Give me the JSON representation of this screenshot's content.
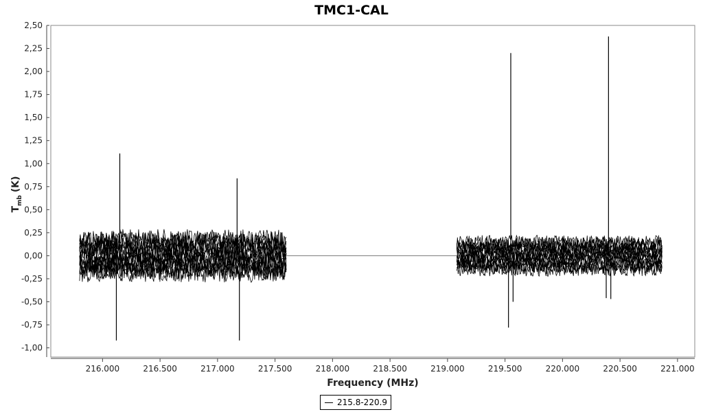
{
  "chart_data": {
    "type": "line",
    "title": "TMC1-CAL",
    "xlabel": "Frequency (MHz)",
    "ylabel_main": "T",
    "ylabel_sub": "mb",
    "ylabel_unit": "(K)",
    "xlim": [
      215.55,
      221.15
    ],
    "ylim": [
      -1.1,
      2.5
    ],
    "x_ticks": [
      216.0,
      216.5,
      217.0,
      217.5,
      218.0,
      218.5,
      219.0,
      219.5,
      220.0,
      220.5,
      221.0
    ],
    "x_tick_labels": [
      "216.000",
      "216.500",
      "217.000",
      "217.500",
      "218.000",
      "218.500",
      "219.000",
      "219.500",
      "220.000",
      "220.500",
      "221.000"
    ],
    "y_ticks": [
      -1.0,
      -0.75,
      -0.5,
      -0.25,
      0.0,
      0.25,
      0.5,
      0.75,
      1.0,
      1.25,
      1.5,
      1.75,
      2.0,
      2.25,
      2.5
    ],
    "y_tick_labels": [
      "-1,00",
      "-0,75",
      "-0,50",
      "-0,25",
      "0,00",
      "0,25",
      "0,50",
      "0,75",
      "1,00",
      "1,25",
      "1,50",
      "1,75",
      "2,00",
      "2,25",
      "2,50"
    ],
    "grid": false,
    "legend_position": "bottom-center",
    "series": [
      {
        "name": "215.8-220.9",
        "color": "#000000",
        "segments": [
          {
            "x_range": [
              215.8,
              217.6
            ],
            "noise_band": [
              -0.35,
              0.35
            ]
          },
          {
            "x_range": [
              217.6,
              219.08
            ],
            "flat_value": 0.0
          },
          {
            "x_range": [
              219.08,
              220.87
            ],
            "noise_band": [
              -0.27,
              0.27
            ]
          }
        ],
        "peaks": [
          {
            "x": 216.15,
            "y": 1.11
          },
          {
            "x": 216.12,
            "y": -0.92
          },
          {
            "x": 217.17,
            "y": 0.84
          },
          {
            "x": 217.19,
            "y": -0.92
          },
          {
            "x": 219.55,
            "y": 2.2
          },
          {
            "x": 219.53,
            "y": -0.78
          },
          {
            "x": 219.57,
            "y": -0.5
          },
          {
            "x": 220.4,
            "y": 2.38
          },
          {
            "x": 220.38,
            "y": -0.46
          },
          {
            "x": 220.42,
            "y": -0.47
          }
        ]
      }
    ]
  }
}
